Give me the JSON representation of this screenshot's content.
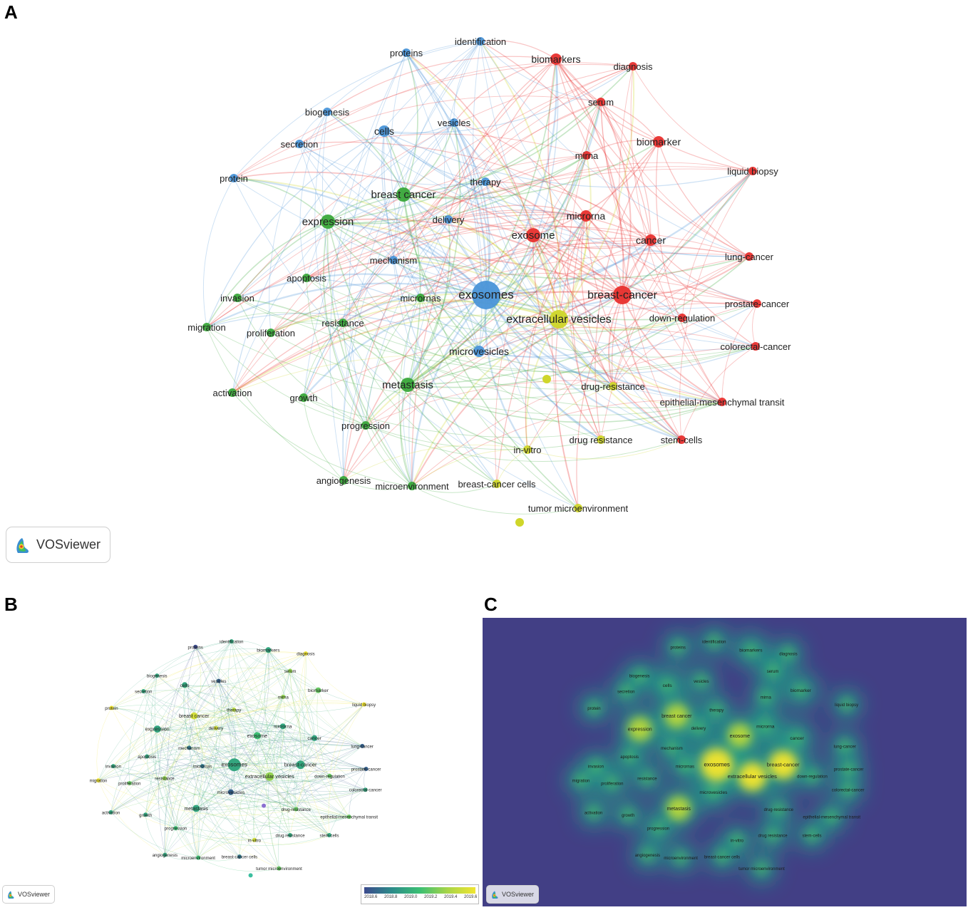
{
  "panels": {
    "a": {
      "letter": "A"
    },
    "b": {
      "letter": "B"
    },
    "c": {
      "letter": "C"
    }
  },
  "branding": {
    "label": "VOSviewer"
  },
  "cluster_colors": {
    "red": "#e8302e",
    "green": "#3aa83a",
    "blue": "#4a95d8",
    "yellow": "#cfd62a"
  },
  "overlay_legend": {
    "ticks": [
      "2018.6",
      "2018.8",
      "2019.0",
      "2019.2",
      "2019.4",
      "2019.6"
    ]
  },
  "nodes": [
    {
      "label": "exosomes",
      "cluster": "blue",
      "weight": 5,
      "year": 2019.0
    },
    {
      "label": "breast-cancer",
      "cluster": "red",
      "weight": 4,
      "year": 2019.0
    },
    {
      "label": "extracellular vesicles",
      "cluster": "yellow",
      "weight": 4,
      "year": 2019.3
    },
    {
      "label": "breast cancer",
      "cluster": "green",
      "weight": 3,
      "year": 2019.5
    },
    {
      "label": "expression",
      "cluster": "green",
      "weight": 3,
      "year": 2019.0
    },
    {
      "label": "metastasis",
      "cluster": "green",
      "weight": 3,
      "year": 2019.0
    },
    {
      "label": "exosome",
      "cluster": "red",
      "weight": 3,
      "year": 2019.1
    },
    {
      "label": "cancer",
      "cluster": "red",
      "weight": 2,
      "year": 2019.0
    },
    {
      "label": "microvesicles",
      "cluster": "blue",
      "weight": 2,
      "year": 2018.7
    },
    {
      "label": "cells",
      "cluster": "blue",
      "weight": 2,
      "year": 2019.0
    },
    {
      "label": "microrna",
      "cluster": "red",
      "weight": 2,
      "year": 2019.0
    },
    {
      "label": "biomarkers",
      "cluster": "red",
      "weight": 2,
      "year": 2019.0
    },
    {
      "label": "biomarker",
      "cluster": "red",
      "weight": 2,
      "year": 2019.2
    },
    {
      "label": "identification",
      "cluster": "blue",
      "weight": 1,
      "year": 2019.0
    },
    {
      "label": "proteins",
      "cluster": "blue",
      "weight": 1,
      "year": 2018.6
    },
    {
      "label": "diagnosis",
      "cluster": "red",
      "weight": 1,
      "year": 2019.6
    },
    {
      "label": "serum",
      "cluster": "red",
      "weight": 1,
      "year": 2019.3
    },
    {
      "label": "biogenesis",
      "cluster": "blue",
      "weight": 1,
      "year": 2019.0
    },
    {
      "label": "vesicles",
      "cluster": "blue",
      "weight": 1,
      "year": 2018.7
    },
    {
      "label": "secretion",
      "cluster": "blue",
      "weight": 1,
      "year": 2019.0
    },
    {
      "label": "mirna",
      "cluster": "red",
      "weight": 1,
      "year": 2019.3
    },
    {
      "label": "liquid biopsy",
      "cluster": "red",
      "weight": 1,
      "year": 2019.6
    },
    {
      "label": "protein",
      "cluster": "blue",
      "weight": 1,
      "year": 2019.6
    },
    {
      "label": "therapy",
      "cluster": "blue",
      "weight": 1,
      "year": 2019.4
    },
    {
      "label": "delivery",
      "cluster": "blue",
      "weight": 1,
      "year": 2019.5
    },
    {
      "label": "mechanism",
      "cluster": "blue",
      "weight": 1,
      "year": 2018.8
    },
    {
      "label": "lung-cancer",
      "cluster": "red",
      "weight": 1,
      "year": 2018.7
    },
    {
      "label": "apoptosis",
      "cluster": "green",
      "weight": 1,
      "year": 2019.0
    },
    {
      "label": "invasion",
      "cluster": "green",
      "weight": 1,
      "year": 2019.0
    },
    {
      "label": "micrornas",
      "cluster": "green",
      "weight": 1,
      "year": 2018.8
    },
    {
      "label": "prostate-cancer",
      "cluster": "red",
      "weight": 1,
      "year": 2018.7
    },
    {
      "label": "down-regulation",
      "cluster": "red",
      "weight": 1,
      "year": 2019.2
    },
    {
      "label": "resistance",
      "cluster": "green",
      "weight": 1,
      "year": 2019.3
    },
    {
      "label": "migration",
      "cluster": "green",
      "weight": 1,
      "year": 2019.6
    },
    {
      "label": "proliferation",
      "cluster": "green",
      "weight": 1,
      "year": 2019.2
    },
    {
      "label": "colorectal-cancer",
      "cluster": "red",
      "weight": 1,
      "year": 2019.0
    },
    {
      "label": "drug-resistance",
      "cluster": "yellow",
      "weight": 1,
      "year": 2019.2
    },
    {
      "label": "activation",
      "cluster": "green",
      "weight": 1,
      "year": 2019.0
    },
    {
      "label": "growth",
      "cluster": "green",
      "weight": 1,
      "year": 2019.0
    },
    {
      "label": "epithelial-mesenchymal transit",
      "cluster": "red",
      "weight": 1,
      "year": 2019.2
    },
    {
      "label": "progression",
      "cluster": "green",
      "weight": 1,
      "year": 2019.1
    },
    {
      "label": "in-vitro",
      "cluster": "yellow",
      "weight": 1,
      "year": 2019.5
    },
    {
      "label": "drug resistance",
      "cluster": "yellow",
      "weight": 1,
      "year": 2019.0
    },
    {
      "label": "stem-cells",
      "cluster": "red",
      "weight": 1,
      "year": 2019.0
    },
    {
      "label": "angiogenesis",
      "cluster": "green",
      "weight": 1,
      "year": 2019.0
    },
    {
      "label": "microenvironment",
      "cluster": "green",
      "weight": 1,
      "year": 2019.1
    },
    {
      "label": "breast-cancer cells",
      "cluster": "yellow",
      "weight": 1,
      "year": 2018.8
    },
    {
      "label": "tumor microenvironment",
      "cluster": "yellow",
      "weight": 1,
      "year": 2019.2
    }
  ]
}
